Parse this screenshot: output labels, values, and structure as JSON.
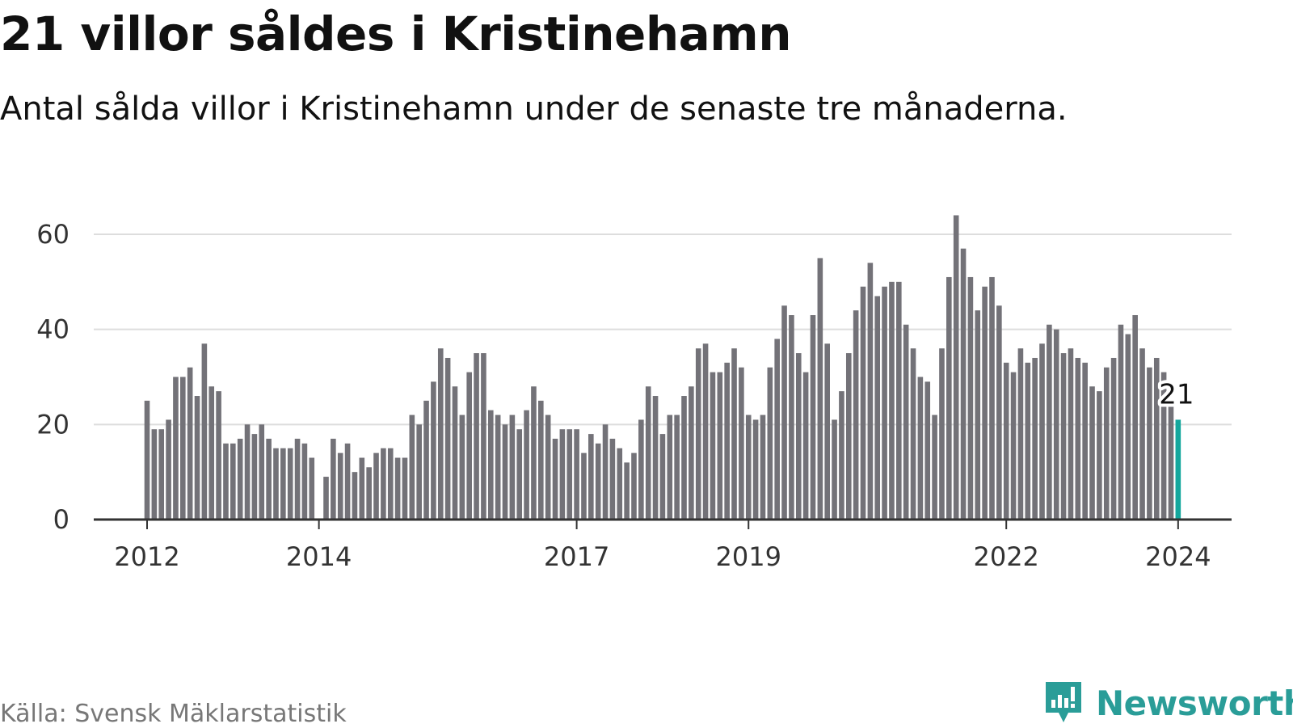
{
  "header": {
    "title": "21 villor såldes i Kristinehamn",
    "subtitle": "Antal sålda villor i Kristinehamn under de senaste tre månaderna."
  },
  "footer": {
    "source": "Källa: Svensk Mäklarstatistik",
    "brand": "Newsworthy"
  },
  "colors": {
    "bar": "#737278",
    "highlight": "#14a79d",
    "grid": "#dddddd",
    "axis": "#333333",
    "brand": "#2a9d98"
  },
  "chart_data": {
    "type": "bar",
    "title": "21 villor såldes i Kristinehamn",
    "xlabel": "",
    "ylabel": "",
    "ylim": [
      0,
      68
    ],
    "yticks": [
      0,
      20,
      40,
      60
    ],
    "xticks": [
      {
        "label": "2012",
        "index": 0
      },
      {
        "label": "2014",
        "index": 24
      },
      {
        "label": "2017",
        "index": 60
      },
      {
        "label": "2019",
        "index": 84
      },
      {
        "label": "2022",
        "index": 120
      },
      {
        "label": "2024",
        "index": 144
      }
    ],
    "grid": true,
    "start": "2012-01",
    "highlight_index": 144,
    "highlight_label": "21",
    "values": [
      25,
      19,
      19,
      21,
      30,
      30,
      32,
      26,
      37,
      28,
      27,
      16,
      16,
      17,
      20,
      18,
      20,
      17,
      15,
      15,
      15,
      17,
      16,
      13,
      0,
      9,
      17,
      14,
      16,
      10,
      13,
      11,
      14,
      15,
      15,
      13,
      13,
      22,
      20,
      25,
      29,
      36,
      34,
      28,
      22,
      31,
      35,
      35,
      23,
      22,
      20,
      22,
      19,
      23,
      28,
      25,
      22,
      17,
      19,
      19,
      19,
      14,
      18,
      16,
      20,
      17,
      15,
      12,
      14,
      21,
      28,
      26,
      18,
      22,
      22,
      26,
      28,
      36,
      37,
      31,
      31,
      33,
      36,
      32,
      22,
      21,
      22,
      32,
      38,
      45,
      43,
      35,
      31,
      43,
      55,
      37,
      21,
      27,
      35,
      44,
      49,
      54,
      47,
      49,
      50,
      50,
      41,
      36,
      30,
      29,
      22,
      36,
      51,
      64,
      57,
      51,
      44,
      49,
      51,
      45,
      33,
      31,
      36,
      33,
      34,
      37,
      41,
      40,
      35,
      36,
      34,
      33,
      28,
      27,
      32,
      34,
      41,
      39,
      43,
      36,
      32,
      34,
      31,
      24,
      21
    ]
  }
}
